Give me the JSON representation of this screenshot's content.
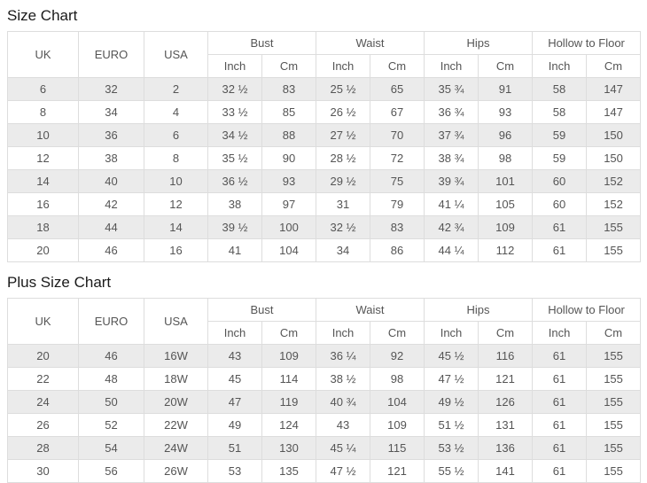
{
  "theme": {
    "border_color": "#dddddd",
    "stripe_color": "#ebebeb",
    "cell_text_color": "#555555",
    "title_color": "#1a1a1a",
    "background_color": "#ffffff"
  },
  "chart_data": [
    {
      "type": "table",
      "title": "Size Chart",
      "rowspan_columns": [
        "UK",
        "EURO",
        "USA"
      ],
      "group_columns": [
        {
          "label": "Bust",
          "sub": [
            "Inch",
            "Cm"
          ]
        },
        {
          "label": "Waist",
          "sub": [
            "Inch",
            "Cm"
          ]
        },
        {
          "label": "Hips",
          "sub": [
            "Inch",
            "Cm"
          ]
        },
        {
          "label": "Hollow to Floor",
          "sub": [
            "Inch",
            "Cm"
          ]
        }
      ],
      "rows": [
        [
          "6",
          "32",
          "2",
          "32 ½",
          "83",
          "25 ½",
          "65",
          "35 ¾",
          "91",
          "58",
          "147"
        ],
        [
          "8",
          "34",
          "4",
          "33 ½",
          "85",
          "26 ½",
          "67",
          "36 ¾",
          "93",
          "58",
          "147"
        ],
        [
          "10",
          "36",
          "6",
          "34 ½",
          "88",
          "27 ½",
          "70",
          "37 ¾",
          "96",
          "59",
          "150"
        ],
        [
          "12",
          "38",
          "8",
          "35 ½",
          "90",
          "28 ½",
          "72",
          "38 ¾",
          "98",
          "59",
          "150"
        ],
        [
          "14",
          "40",
          "10",
          "36 ½",
          "93",
          "29 ½",
          "75",
          "39 ¾",
          "101",
          "60",
          "152"
        ],
        [
          "16",
          "42",
          "12",
          "38",
          "97",
          "31",
          "79",
          "41 ¼",
          "105",
          "60",
          "152"
        ],
        [
          "18",
          "44",
          "14",
          "39 ½",
          "100",
          "32 ½",
          "83",
          "42 ¾",
          "109",
          "61",
          "155"
        ],
        [
          "20",
          "46",
          "16",
          "41",
          "104",
          "34",
          "86",
          "44 ¼",
          "112",
          "61",
          "155"
        ]
      ]
    },
    {
      "type": "table",
      "title": "Plus Size Chart",
      "rowspan_columns": [
        "UK",
        "EURO",
        "USA"
      ],
      "group_columns": [
        {
          "label": "Bust",
          "sub": [
            "Inch",
            "Cm"
          ]
        },
        {
          "label": "Waist",
          "sub": [
            "Inch",
            "Cm"
          ]
        },
        {
          "label": "Hips",
          "sub": [
            "Inch",
            "Cm"
          ]
        },
        {
          "label": "Hollow to Floor",
          "sub": [
            "Inch",
            "Cm"
          ]
        }
      ],
      "rows": [
        [
          "20",
          "46",
          "16W",
          "43",
          "109",
          "36 ¼",
          "92",
          "45 ½",
          "116",
          "61",
          "155"
        ],
        [
          "22",
          "48",
          "18W",
          "45",
          "114",
          "38 ½",
          "98",
          "47 ½",
          "121",
          "61",
          "155"
        ],
        [
          "24",
          "50",
          "20W",
          "47",
          "119",
          "40 ¾",
          "104",
          "49 ½",
          "126",
          "61",
          "155"
        ],
        [
          "26",
          "52",
          "22W",
          "49",
          "124",
          "43",
          "109",
          "51 ½",
          "131",
          "61",
          "155"
        ],
        [
          "28",
          "54",
          "24W",
          "51",
          "130",
          "45 ¼",
          "115",
          "53 ½",
          "136",
          "61",
          "155"
        ],
        [
          "30",
          "56",
          "26W",
          "53",
          "135",
          "47 ½",
          "121",
          "55 ½",
          "141",
          "61",
          "155"
        ]
      ]
    }
  ]
}
